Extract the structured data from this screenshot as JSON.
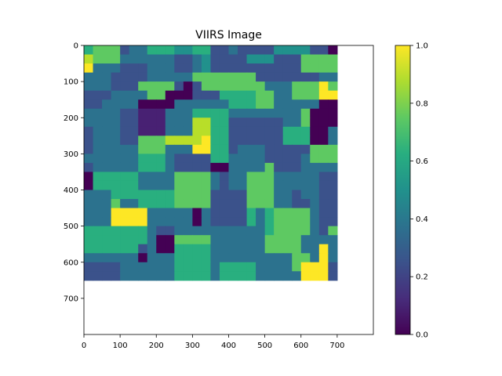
{
  "chart_data": {
    "type": "heatmap",
    "title": "VIIRS Image",
    "xlabel": "",
    "ylabel": "",
    "x_range": [
      0,
      800
    ],
    "y_range": [
      800,
      0
    ],
    "x_ticks": [
      0,
      100,
      200,
      300,
      400,
      500,
      600,
      700
    ],
    "y_ticks": [
      0,
      100,
      200,
      300,
      400,
      500,
      600,
      700
    ],
    "x_tick_labels": [
      "0",
      "100",
      "200",
      "300",
      "400",
      "500",
      "600",
      "700"
    ],
    "y_tick_labels": [
      "0",
      "100",
      "200",
      "300",
      "400",
      "500",
      "600",
      "700"
    ],
    "colormap": "viridis",
    "colorbar": {
      "range": [
        0.0,
        1.0
      ],
      "ticks": [
        0.0,
        0.2,
        0.4,
        0.6,
        0.8,
        1.0
      ],
      "tick_labels": [
        "0.0",
        "0.2",
        "0.4",
        "0.6",
        "0.8",
        "1.0"
      ]
    },
    "grid": false,
    "cell_size": 25,
    "rows": [
      "5666233555445522322224444220",
      "7666333333223422224442226666",
      "8333222333223422222222226666",
      "3332222333336666666222222233",
      "3332226666202666666633366686",
      "2223333660002225555663366688",
      "2233330000333333555663333300",
      "3333221113335555333333336000",
      "3333221113337755222222336000",
      "2333221113337755222222555003",
      "2333226667777855222222555003",
      "2333336663338855233322222666",
      "3333335553222255333322223666",
      "2333335553222200333362223333",
      "0555553333666632336663333322",
      "0555553333666632336663333322",
      "3335555555666622226663323322",
      "3336335555666622226663322322",
      "3338888333330322225356666322",
      "3338888333330322225356666322",
      "5555555322333333333356666326",
      "5555555300666633333366663333",
      "5555552300555533333366663383",
      "3333330333555533333333366383",
      "2222333333555535555333368882",
      "2222333333555535555333338882"
    ]
  }
}
